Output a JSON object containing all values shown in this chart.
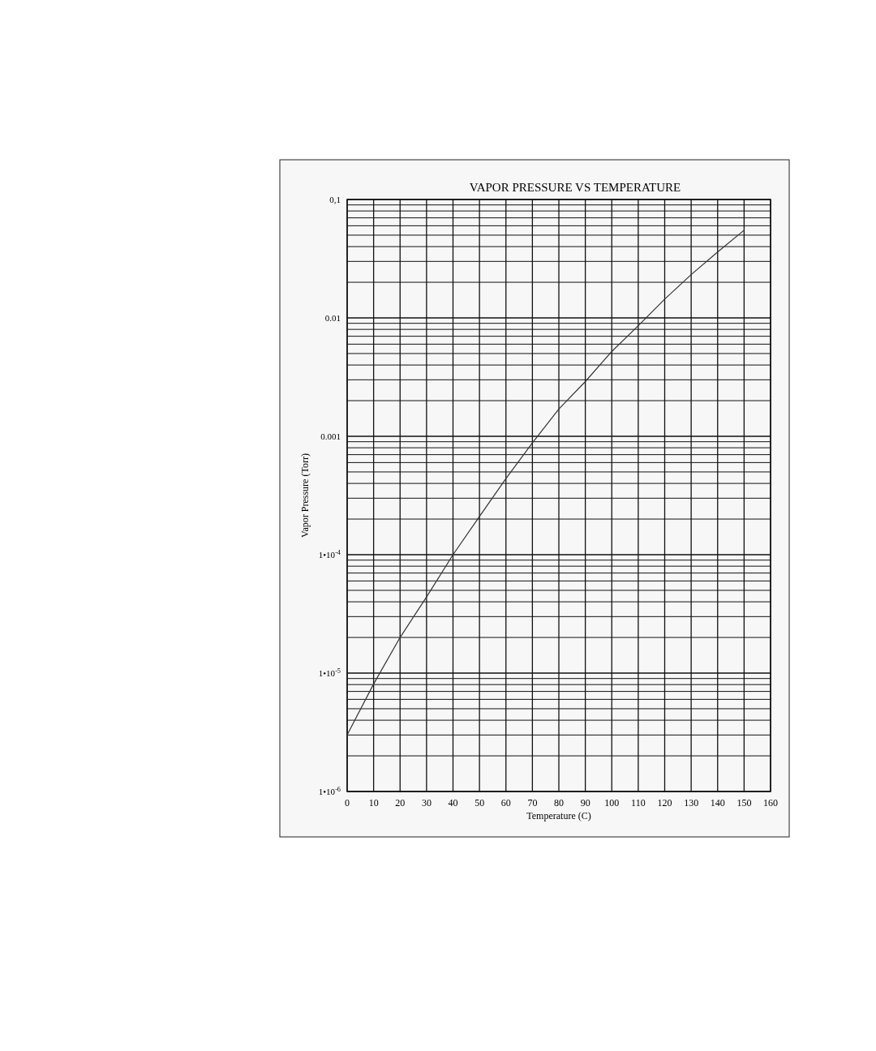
{
  "chart_data": {
    "type": "line",
    "title": "VAPOR PRESSURE VS TEMPERATURE",
    "xlabel": "Temperature (C)",
    "ylabel": "Vapor Pressure (Torr)",
    "log": "y",
    "grid": true,
    "marker": "none",
    "line_style": "solid",
    "x": [
      0,
      10,
      20,
      30,
      40,
      50,
      60,
      70,
      80,
      90,
      100,
      110,
      120,
      130,
      140,
      150
    ],
    "series": [
      {
        "color": "#333333",
        "values": [
          3e-06,
          8.1e-06,
          2e-05,
          4.4e-05,
          0.0001,
          0.00021,
          0.00044,
          0.00088,
          0.0017,
          0.0029,
          0.0052,
          0.0086,
          0.0144,
          0.0232,
          0.036,
          0.055
        ]
      }
    ],
    "xlim": [
      0,
      160
    ],
    "xticks": [
      0,
      10,
      20,
      30,
      40,
      50,
      60,
      70,
      80,
      90,
      100,
      110,
      120,
      130,
      140,
      150,
      160
    ],
    "ylim": [
      1e-06,
      0.1
    ],
    "yticks": [
      {
        "value": 1e-06,
        "label": "1•10$^{-6}$"
      },
      {
        "value": 2e-06,
        "label": null
      },
      {
        "value": 3e-06,
        "label": null
      },
      {
        "value": 4e-06,
        "label": null
      },
      {
        "value": 5e-06,
        "label": null
      },
      {
        "value": 6e-06,
        "label": null
      },
      {
        "value": 7e-06,
        "label": null
      },
      {
        "value": 8e-06,
        "label": null
      },
      {
        "value": 9e-06,
        "label": null
      },
      {
        "value": 1e-05,
        "label": "1•10$^{-5}$"
      },
      {
        "value": 2e-05,
        "label": null
      },
      {
        "value": 3e-05,
        "label": null
      },
      {
        "value": 4e-05,
        "label": null
      },
      {
        "value": 5e-05,
        "label": null
      },
      {
        "value": 6e-05,
        "label": null
      },
      {
        "value": 7e-05,
        "label": null
      },
      {
        "value": 8e-05,
        "label": null
      },
      {
        "value": 9e-05,
        "label": null
      },
      {
        "value": 0.0001,
        "label": "1•10$^{-4}$"
      },
      {
        "value": 0.0002,
        "label": null
      },
      {
        "value": 0.0003,
        "label": null
      },
      {
        "value": 0.0004,
        "label": null
      },
      {
        "value": 0.0005,
        "label": null
      },
      {
        "value": 0.0006,
        "label": null
      },
      {
        "value": 0.0007,
        "label": null
      },
      {
        "value": 0.0008,
        "label": null
      },
      {
        "value": 0.0009,
        "label": null
      },
      {
        "value": 0.001,
        "label": "0.001"
      },
      {
        "value": 0.002,
        "label": null
      },
      {
        "value": 0.003,
        "label": null
      },
      {
        "value": 0.004,
        "label": null
      },
      {
        "value": 0.005,
        "label": null
      },
      {
        "value": 0.006,
        "label": null
      },
      {
        "value": 0.007,
        "label": null
      },
      {
        "value": 0.008,
        "label": null
      },
      {
        "value": 0.009,
        "label": null
      },
      {
        "value": 0.01,
        "label": "0.01"
      },
      {
        "value": 0.02,
        "label": null
      },
      {
        "value": 0.03,
        "label": null
      },
      {
        "value": 0.04,
        "label": null
      },
      {
        "value": 0.05,
        "label": null
      },
      {
        "value": 0.06,
        "label": null
      },
      {
        "value": 0.07,
        "label": null
      },
      {
        "value": 0.08,
        "label": null
      },
      {
        "value": 0.09,
        "label": null
      },
      {
        "value": 0.1,
        "label": "0,1"
      }
    ]
  }
}
